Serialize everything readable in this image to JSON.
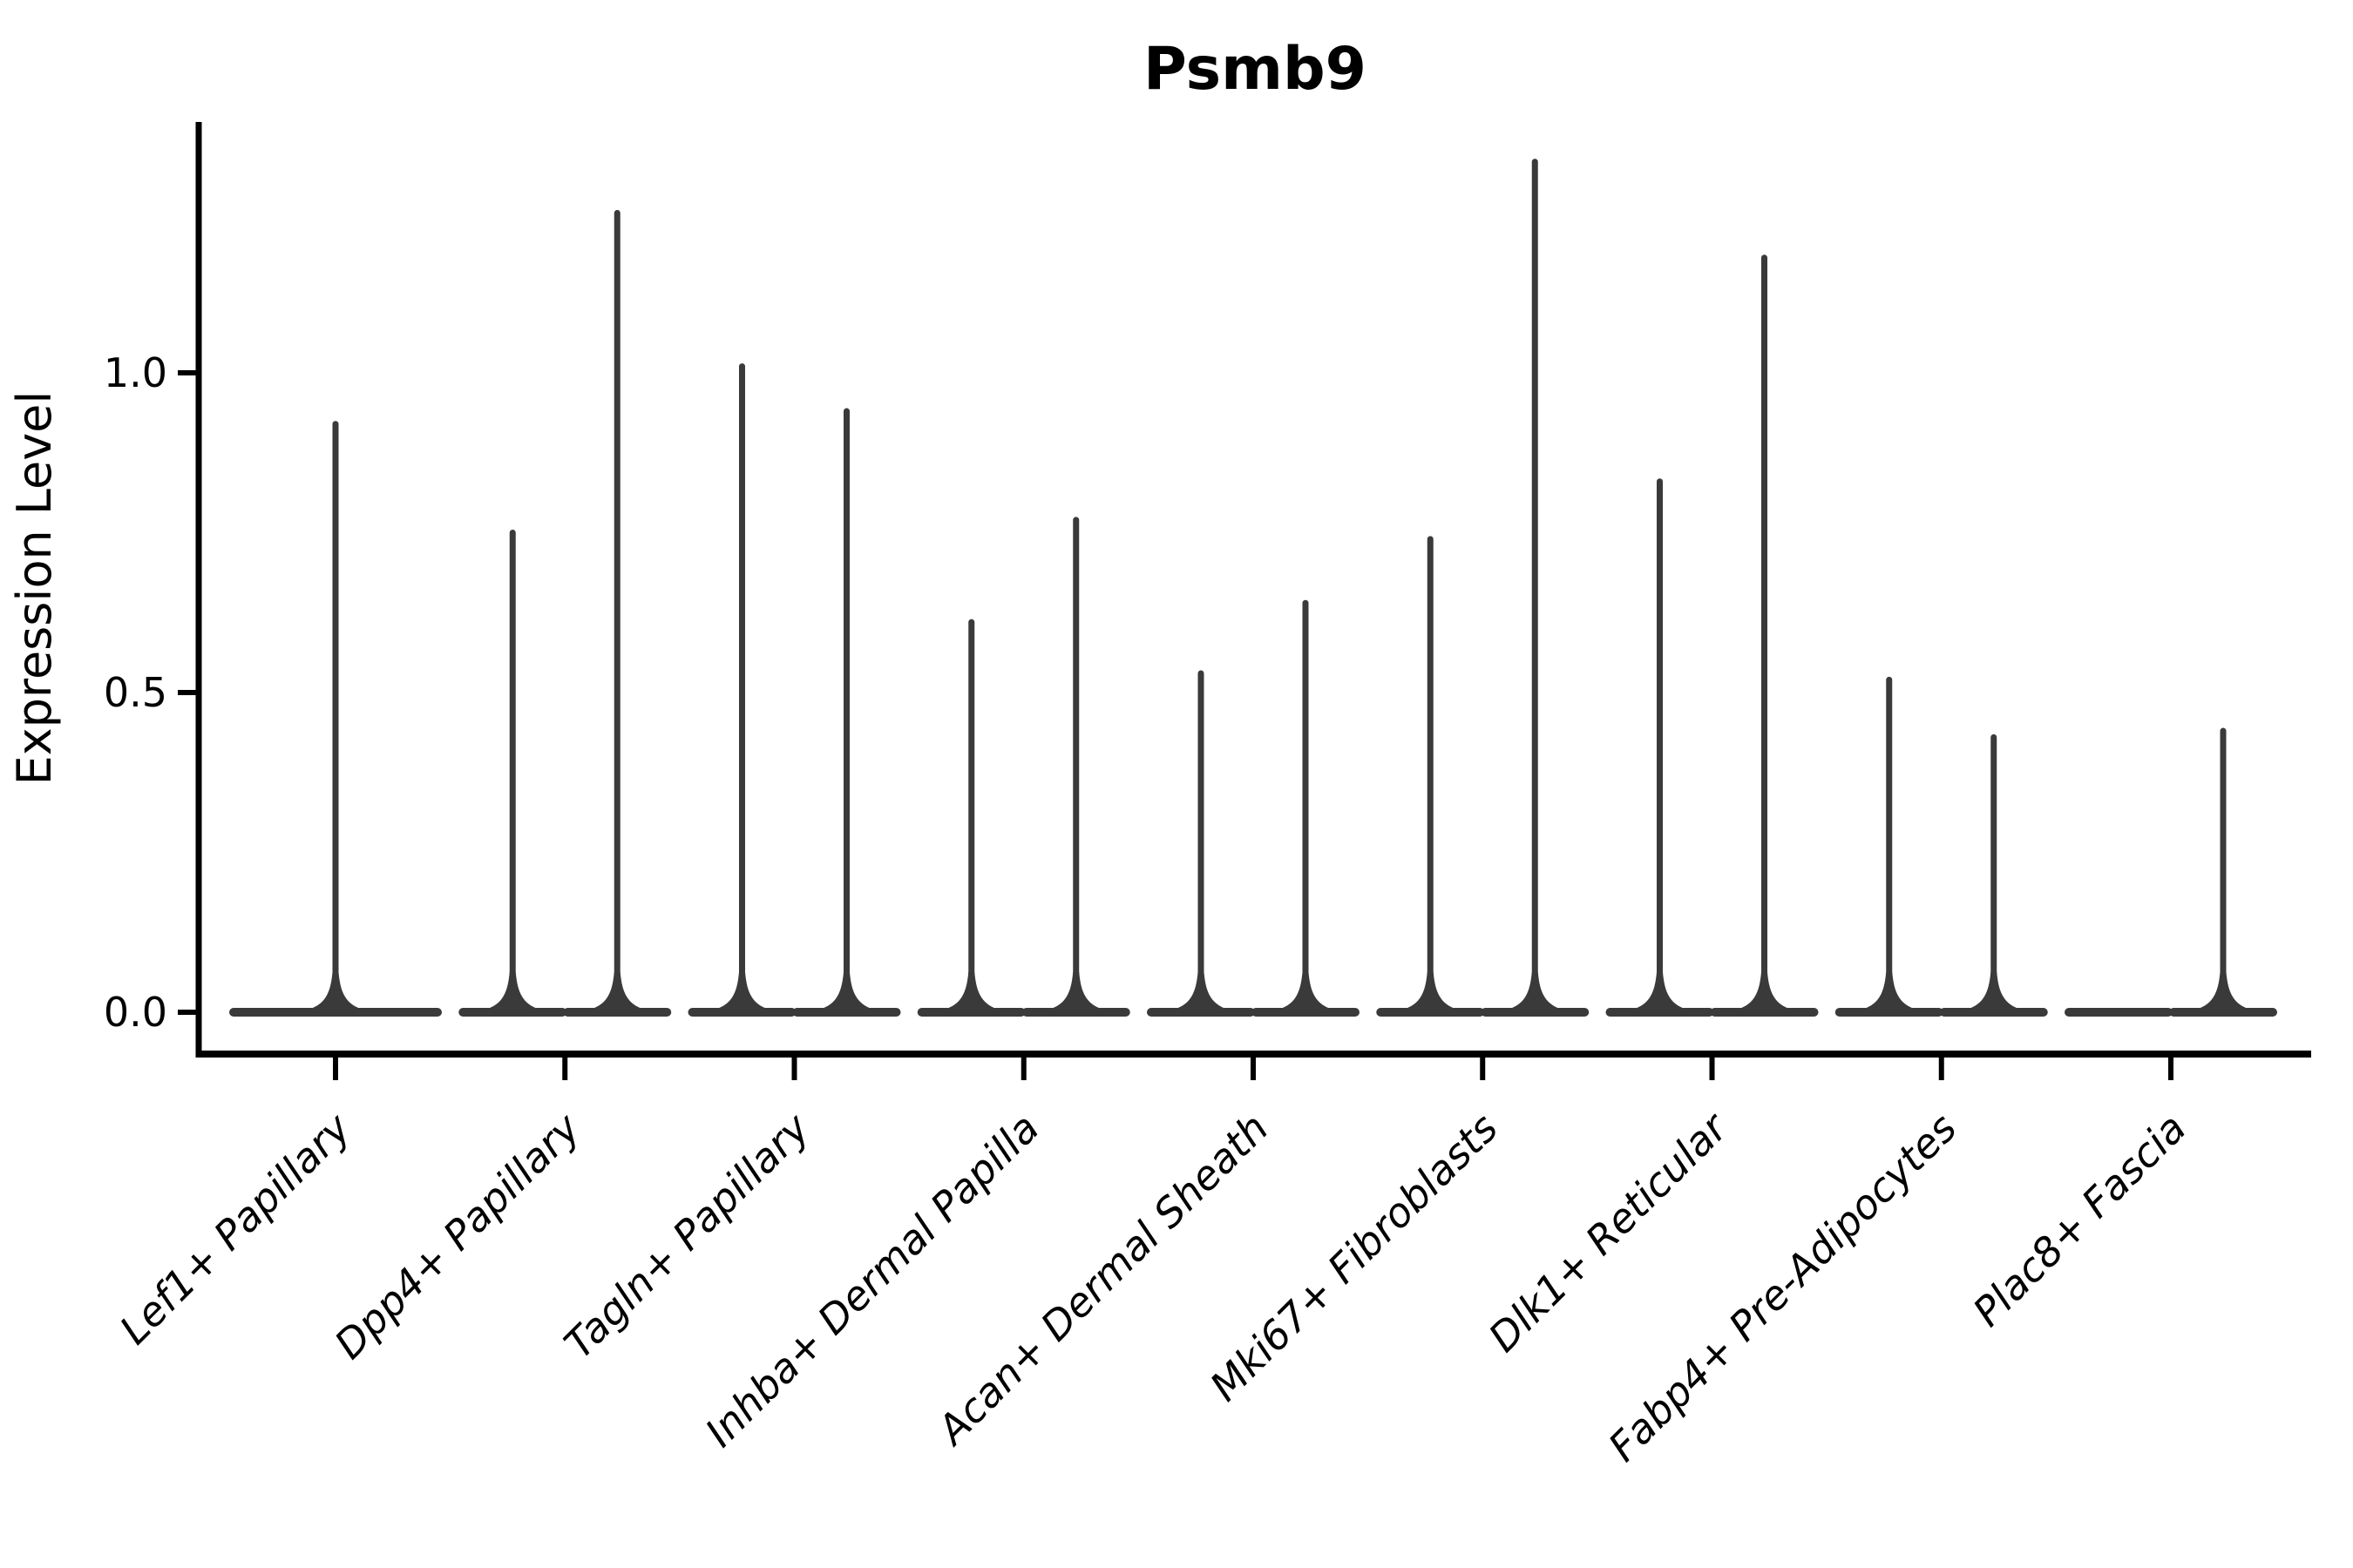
{
  "title": "Psmb9",
  "y_axis": {
    "label": "Expression Level",
    "tick_labels": [
      "0.0",
      "0.5",
      "1.0"
    ],
    "tick_values": [
      0.0,
      0.5,
      1.0
    ]
  },
  "colors": {
    "violin_stroke": "#3a3a3a",
    "axis": "#000000",
    "background": "#ffffff"
  },
  "chart_data": {
    "type": "violin",
    "title": "Psmb9",
    "xlabel": "",
    "ylabel": "Expression Level",
    "ylim": [
      0,
      1.39
    ],
    "yticks": [
      0.0,
      0.5,
      1.0
    ],
    "grid": false,
    "legend": "none",
    "categories": [
      "Lef1+ Papillary",
      "Dpp4+ Papillary",
      "Tagln+ Papillary",
      "Inhba+ Dermal Papilla",
      "Acan+ Dermal Sheath",
      "Mki67+ Fibroblasts",
      "Dlk1+ Reticular",
      "Fabp4+ Pre-Adipocytes",
      "Plac8+ Fascia"
    ],
    "series": [
      {
        "category": "Lef1+ Papillary",
        "violins": [
          {
            "position": "center",
            "median": 0.0,
            "max": 0.92
          }
        ]
      },
      {
        "category": "Dpp4+ Papillary",
        "violins": [
          {
            "position": "left",
            "median": 0.0,
            "max": 0.75
          },
          {
            "position": "right",
            "median": 0.0,
            "max": 1.25
          }
        ]
      },
      {
        "category": "Tagln+ Papillary",
        "violins": [
          {
            "position": "left",
            "median": 0.0,
            "max": 1.01
          },
          {
            "position": "right",
            "median": 0.0,
            "max": 0.94
          }
        ]
      },
      {
        "category": "Inhba+ Dermal Papilla",
        "violins": [
          {
            "position": "left",
            "median": 0.0,
            "max": 0.61
          },
          {
            "position": "right",
            "median": 0.0,
            "max": 0.77
          }
        ]
      },
      {
        "category": "Acan+ Dermal Sheath",
        "violins": [
          {
            "position": "left",
            "median": 0.0,
            "max": 0.53
          },
          {
            "position": "right",
            "median": 0.0,
            "max": 0.64
          }
        ]
      },
      {
        "category": "Mki67+ Fibroblasts",
        "violins": [
          {
            "position": "left",
            "median": 0.0,
            "max": 0.74
          },
          {
            "position": "right",
            "median": 0.0,
            "max": 1.33
          }
        ]
      },
      {
        "category": "Dlk1+ Reticular",
        "violins": [
          {
            "position": "left",
            "median": 0.0,
            "max": 0.83
          },
          {
            "position": "right",
            "median": 0.0,
            "max": 1.18
          }
        ]
      },
      {
        "category": "Fabp4+ Pre-Adipocytes",
        "violins": [
          {
            "position": "left",
            "median": 0.0,
            "max": 0.52
          },
          {
            "position": "right",
            "median": 0.0,
            "max": 0.43
          }
        ]
      },
      {
        "category": "Plac8+ Fascia",
        "violins": [
          {
            "position": "left",
            "median": 0.0,
            "max": 0.0
          },
          {
            "position": "right",
            "median": 0.0,
            "max": 0.44
          }
        ]
      }
    ]
  }
}
